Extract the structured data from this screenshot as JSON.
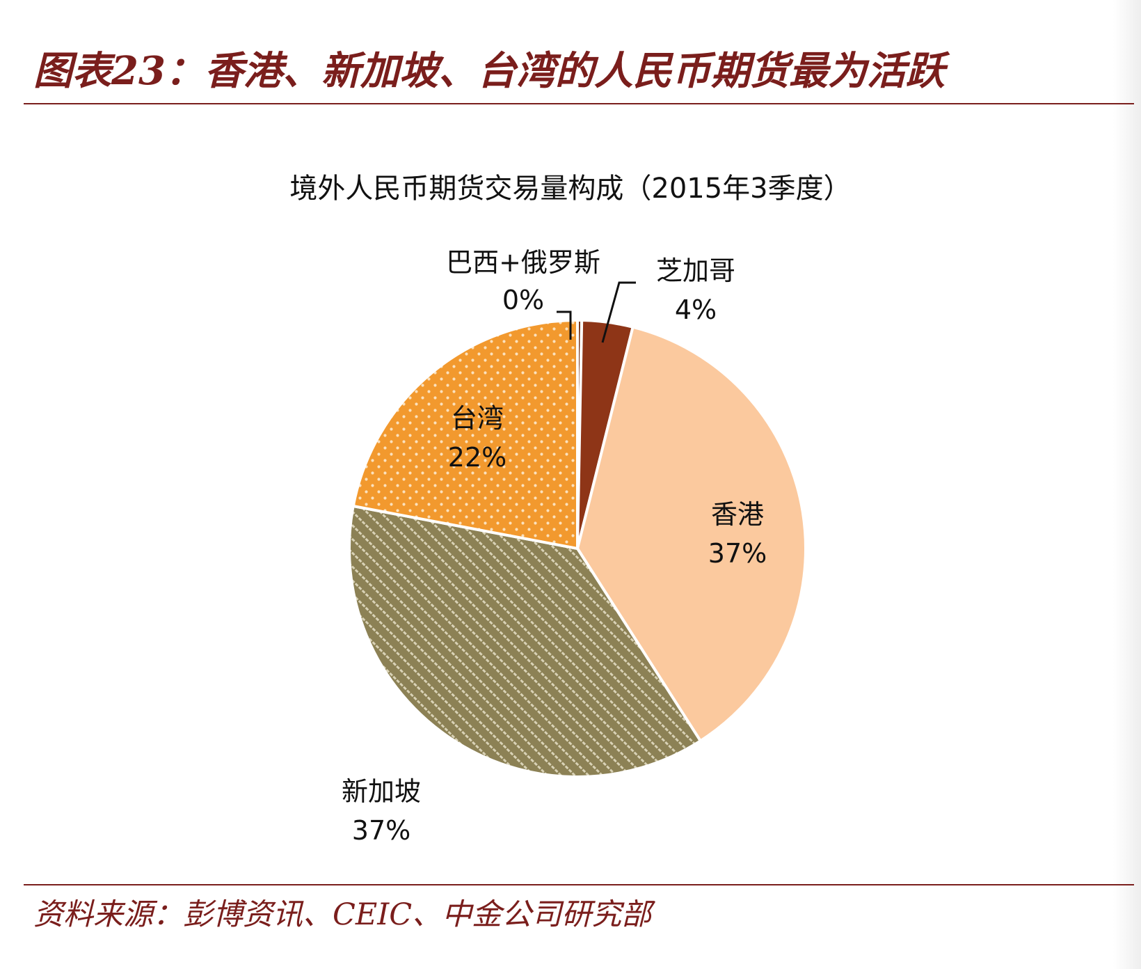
{
  "figure": {
    "title": "图表23：香港、新加坡、台湾的人民币期货最为活跃",
    "source": "资料来源：彭博资讯、CEIC、中金公司研究部"
  },
  "colors": {
    "accent": "#7a1e1c",
    "rule": "#7a1e1c"
  },
  "chart_data": {
    "type": "pie",
    "title": "境外人民币期货交易量构成（2015年3季度）",
    "legend": "none",
    "start_angle_deg": 0,
    "direction": "clockwise",
    "slices": [
      {
        "label": "巴西+俄罗斯",
        "value": 0.3,
        "display": "0%",
        "color": "#7a3b1f",
        "pattern": "solid"
      },
      {
        "label": "芝加哥",
        "value": 3.6,
        "display": "4%",
        "color": "#8e3517",
        "pattern": "solid"
      },
      {
        "label": "香港",
        "value": 37,
        "display": "37%",
        "color": "#fbc99e",
        "pattern": "solid"
      },
      {
        "label": "新加坡",
        "value": 37,
        "display": "37%",
        "color": "#8c8155",
        "pattern": "diagonal-dots"
      },
      {
        "label": "台湾",
        "value": 22,
        "display": "22%",
        "color": "#f2992e",
        "pattern": "dots"
      }
    ]
  }
}
